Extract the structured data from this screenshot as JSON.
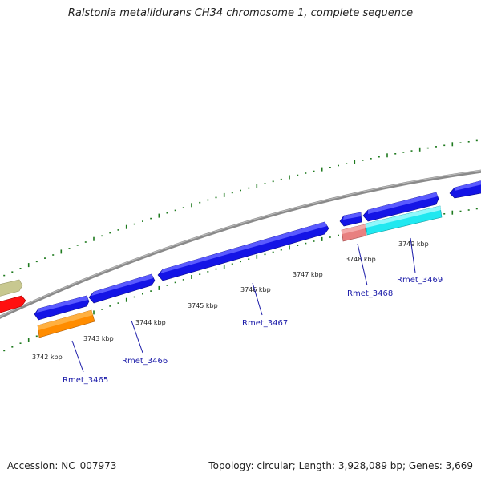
{
  "title": "Ralstonia metallidurans CH34 chromosome 1, complete sequence",
  "accession": "Accession: NC_007973",
  "topology": "Topology: circular; Length: 3,928,089 bp; Genes: 3,669",
  "colors": {
    "backbone": "#8a8a8a",
    "tick": "#1e7a1e",
    "cds": "#1414e6",
    "orange_feature": "#ff8c00",
    "pink_feature": "#e88080",
    "cyan_feature": "#20e8f0",
    "red_feature": "#ff1010",
    "khaki_feature": "#c8c890",
    "gene_label": "#1a1aa8",
    "label_line": "#1a1aa8"
  },
  "ruler_labels": [
    "3742 kbp",
    "3743 kbp",
    "3744 kbp",
    "3745 kbp",
    "3746 kbp",
    "3747 kbp",
    "3748 kbp",
    "3749 kbp"
  ],
  "gene_labels": [
    "Rmet_3465",
    "Rmet_3466",
    "Rmet_3467",
    "Rmet_3468",
    "Rmet_3469"
  ]
}
